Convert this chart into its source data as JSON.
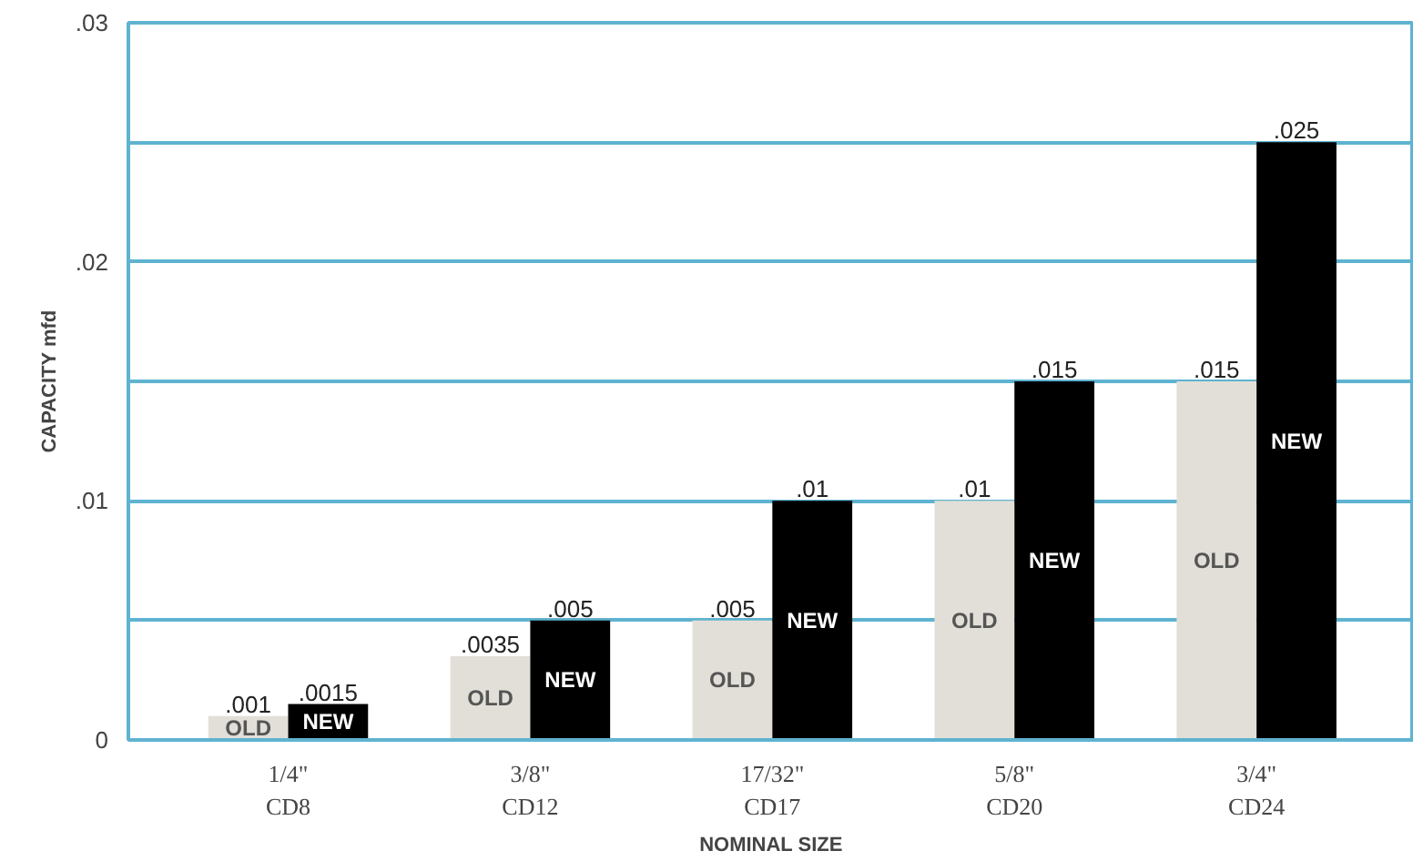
{
  "chart_data": {
    "type": "bar",
    "xlabel": "NOMINAL SIZE",
    "ylabel": "CAPACITY mfd",
    "categories": [
      "1/4\"\nCD8",
      "3/8\"\nCD12",
      "17/32\"\nCD17",
      "5/8\"\nCD20",
      "3/4\"\nCD24"
    ],
    "series": [
      {
        "name": "OLD",
        "color": "#e2dfd8",
        "values": [
          0.001,
          0.0035,
          0.005,
          0.01,
          0.015
        ],
        "value_labels": [
          ".001",
          ".0035",
          ".005",
          ".01",
          ".015"
        ]
      },
      {
        "name": "NEW",
        "color": "#000000",
        "values": [
          0.0015,
          0.005,
          0.01,
          0.015,
          0.025
        ],
        "value_labels": [
          ".0015",
          ".005",
          ".01",
          ".015",
          ".025"
        ]
      }
    ],
    "ylim": [
      0,
      0.03
    ],
    "yticks": [
      0,
      {
        "value": 0.005,
        "label": null
      },
      {
        "value": 0.01,
        "label": ".01"
      },
      {
        "value": 0.015,
        "label": null
      },
      {
        "value": 0.02,
        "label": ".02"
      },
      {
        "value": 0.025,
        "label": null
      },
      {
        "value": 0.03,
        "label": ".03"
      }
    ],
    "grid": "y"
  }
}
